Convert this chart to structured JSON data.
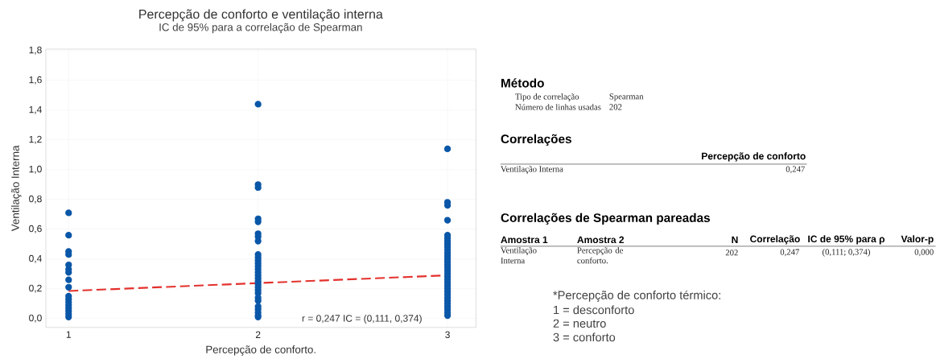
{
  "chart_data": [
    {
      "type": "scatter",
      "title": "Percepção de conforto e ventilação interna",
      "subtitle": "IC de 95% para a correlação de Spearman",
      "xlabel": "Percepção de conforto.",
      "ylabel": "Ventilação Interna",
      "xlim": [
        0.88,
        3.15
      ],
      "xticks": [
        1,
        2,
        3
      ],
      "ylim": [
        -0.06,
        1.81
      ],
      "yticks": [
        {
          "value": 0,
          "label": "0,0"
        },
        {
          "value": 0.2,
          "label": "0,2"
        },
        {
          "value": 0.4,
          "label": "0,4"
        },
        {
          "value": 0.6,
          "label": "0,6"
        },
        {
          "value": 0.8,
          "label": "0,8"
        },
        {
          "value": 1.0,
          "label": "1,0"
        },
        {
          "value": 1.2,
          "label": "1,2"
        },
        {
          "value": 1.4,
          "label": "1,4"
        },
        {
          "value": 1.6,
          "label": "1,6"
        },
        {
          "value": 1.8,
          "label": "1,8"
        }
      ],
      "grid": true,
      "annotations": [
        "r = 0,247  IC = (0,111, 0,374)"
      ],
      "series": [
        {
          "color": "#0a57a8",
          "marker": "circle",
          "x": [
            1,
            1,
            1,
            1,
            1,
            1,
            1,
            1,
            1,
            1,
            1,
            1,
            1,
            1,
            1,
            1,
            1,
            2,
            2,
            2,
            2,
            2,
            2,
            2,
            2,
            2,
            2,
            2,
            2,
            2,
            2,
            2,
            2,
            2,
            2,
            2,
            2,
            2,
            2,
            2,
            2,
            2,
            2,
            2,
            2,
            2,
            3,
            3,
            3,
            3,
            3,
            3,
            3,
            3,
            3,
            3,
            3,
            3,
            3,
            3,
            3,
            3,
            3,
            3,
            3,
            3,
            3,
            3,
            3,
            3,
            3,
            3,
            3,
            3,
            3,
            3,
            3,
            3
          ],
          "values": [
            0.71,
            0.56,
            0.45,
            0.43,
            0.36,
            0.33,
            0.31,
            0.26,
            0.21,
            0.15,
            0.13,
            0.11,
            0.09,
            0.07,
            0.05,
            0.03,
            0.01,
            1.44,
            0.9,
            0.88,
            0.67,
            0.65,
            0.57,
            0.55,
            0.52,
            0.43,
            0.41,
            0.39,
            0.37,
            0.35,
            0.33,
            0.31,
            0.29,
            0.27,
            0.25,
            0.23,
            0.21,
            0.19,
            0.17,
            0.14,
            0.12,
            0.08,
            0.06,
            0.04,
            0.02,
            0.01,
            1.14,
            0.78,
            0.76,
            0.66,
            0.56,
            0.54,
            0.52,
            0.5,
            0.48,
            0.46,
            0.44,
            0.42,
            0.4,
            0.38,
            0.36,
            0.34,
            0.32,
            0.3,
            0.28,
            0.26,
            0.24,
            0.22,
            0.2,
            0.18,
            0.16,
            0.14,
            0.12,
            0.1,
            0.08,
            0.06,
            0.04,
            0.02
          ]
        },
        {
          "type": "line",
          "color": "#e3312d",
          "marker": "none",
          "line_style": "dashed",
          "x": [
            1,
            2,
            3
          ],
          "values": [
            0.185,
            0.238,
            0.29
          ]
        }
      ]
    },
    {
      "type": "other",
      "annotations": [
        "Método",
        "Tipo de correlação",
        "Spearman",
        "Número de linhas usadas",
        "202",
        "Correlações",
        "Percepção de conforto",
        "Ventilação Interna",
        "0,247",
        "Correlações de Spearman pareadas",
        "Amostra 1",
        "Amostra 2",
        "N",
        "Correlação",
        "IC de 95% para ρ",
        "Valor-p",
        "Ventilação Interna",
        "Percepção de conforto.",
        "202",
        "0,247",
        "(0,111; 0,374)",
        "0,000",
        "*Percepção de conforto térmico:",
        "1 = desconforto",
        "2 = neutro",
        "3 = conforto"
      ]
    }
  ]
}
